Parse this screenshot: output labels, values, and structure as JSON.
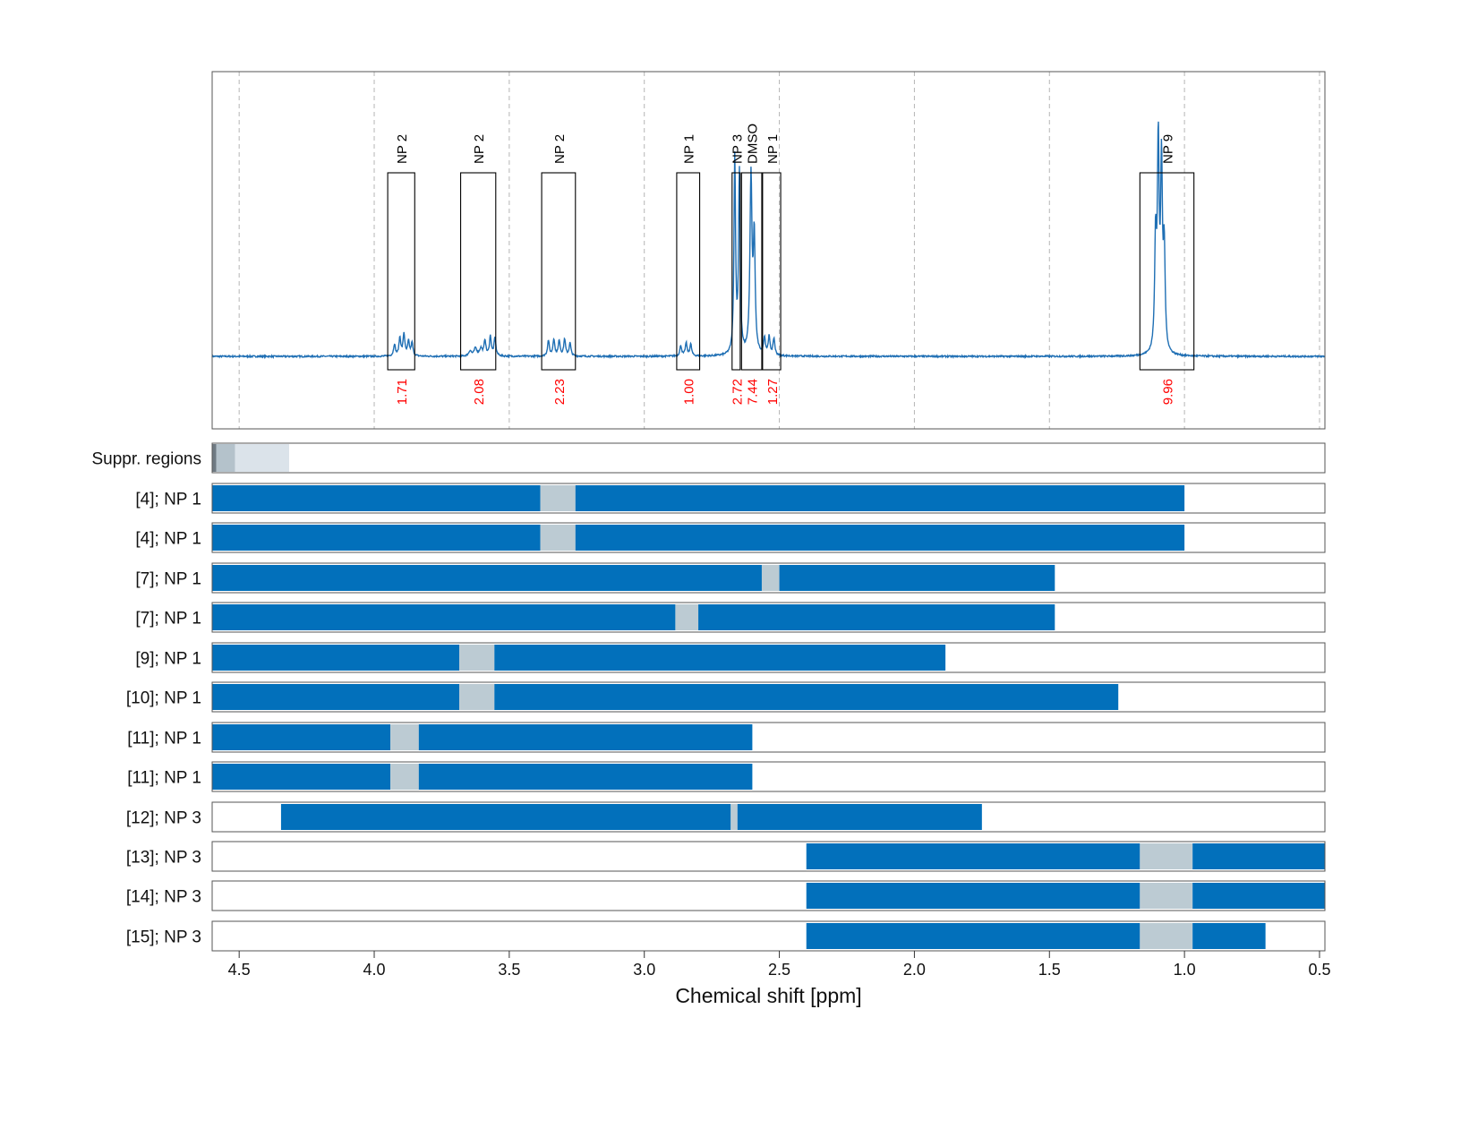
{
  "chart_data": {
    "type": "line",
    "xlabel": "Chemical shift [ppm]",
    "x_axis": {
      "range": [
        4.6,
        0.48
      ],
      "reversed": true,
      "ticks": [
        4.5,
        4.0,
        3.5,
        3.0,
        2.5,
        2.0,
        1.5,
        1.0,
        0.5
      ],
      "tick_labels": [
        "4.5",
        "4.0",
        "3.5",
        "3.0",
        "2.5",
        "2.0",
        "1.5",
        "1.0",
        "0.5"
      ],
      "grid": "dashed vertical at ticks"
    },
    "spectrum": {
      "color": "#1f6fb4",
      "baseline": 0,
      "peaks": [
        {
          "ppm": 3.925,
          "height": 0.045,
          "width": 0.004
        },
        {
          "ppm": 3.905,
          "height": 0.07,
          "width": 0.004
        },
        {
          "ppm": 3.89,
          "height": 0.085,
          "width": 0.004
        },
        {
          "ppm": 3.873,
          "height": 0.055,
          "width": 0.004
        },
        {
          "ppm": 3.86,
          "height": 0.05,
          "width": 0.004
        },
        {
          "ppm": 3.645,
          "height": 0.02,
          "width": 0.006
        },
        {
          "ppm": 3.625,
          "height": 0.03,
          "width": 0.006
        },
        {
          "ppm": 3.605,
          "height": 0.028,
          "width": 0.006
        },
        {
          "ppm": 3.59,
          "height": 0.06,
          "width": 0.004
        },
        {
          "ppm": 3.57,
          "height": 0.075,
          "width": 0.004
        },
        {
          "ppm": 3.553,
          "height": 0.07,
          "width": 0.004
        },
        {
          "ppm": 3.355,
          "height": 0.06,
          "width": 0.004
        },
        {
          "ppm": 3.335,
          "height": 0.065,
          "width": 0.004
        },
        {
          "ppm": 3.315,
          "height": 0.06,
          "width": 0.004
        },
        {
          "ppm": 3.295,
          "height": 0.065,
          "width": 0.004
        },
        {
          "ppm": 3.275,
          "height": 0.05,
          "width": 0.004
        },
        {
          "ppm": 2.865,
          "height": 0.04,
          "width": 0.004
        },
        {
          "ppm": 2.845,
          "height": 0.05,
          "width": 0.004
        },
        {
          "ppm": 2.828,
          "height": 0.045,
          "width": 0.004
        },
        {
          "ppm": 2.665,
          "height": 0.76,
          "width": 0.0035
        },
        {
          "ppm": 2.648,
          "height": 0.7,
          "width": 0.0035
        },
        {
          "ppm": 2.605,
          "height": 0.68,
          "width": 0.0045
        },
        {
          "ppm": 2.593,
          "height": 0.44,
          "width": 0.004
        },
        {
          "ppm": 2.555,
          "height": 0.065,
          "width": 0.004
        },
        {
          "ppm": 2.538,
          "height": 0.07,
          "width": 0.004
        },
        {
          "ppm": 2.52,
          "height": 0.065,
          "width": 0.004
        },
        {
          "ppm": 1.107,
          "height": 0.42,
          "width": 0.004
        },
        {
          "ppm": 1.097,
          "height": 0.78,
          "width": 0.004
        },
        {
          "ppm": 1.085,
          "height": 0.7,
          "width": 0.004
        },
        {
          "ppm": 1.075,
          "height": 0.38,
          "width": 0.004
        }
      ],
      "ylim": [
        -0.28,
        1.1
      ]
    },
    "integration_regions": [
      {
        "label": "NP 2",
        "value": "1.71",
        "from": 3.95,
        "to": 3.85
      },
      {
        "label": "NP 2",
        "value": "2.08",
        "from": 3.68,
        "to": 3.55
      },
      {
        "label": "NP 2",
        "value": "2.23",
        "from": 3.38,
        "to": 3.255
      },
      {
        "label": "NP 1",
        "value": "1.00",
        "from": 2.88,
        "to": 2.795
      },
      {
        "label": "NP 3",
        "value": "2.72",
        "from": 2.675,
        "to": 2.645
      },
      {
        "label": "DMSO",
        "value": "7.44",
        "from": 2.64,
        "to": 2.565
      },
      {
        "label": "NP 1",
        "value": "1.27",
        "from": 2.562,
        "to": 2.495
      },
      {
        "label": "NP 9",
        "value": "9.96",
        "from": 1.165,
        "to": 0.965
      }
    ],
    "suppression_rows": [
      {
        "label": "Suppr. regions",
        "segments": [
          {
            "from": 4.6,
            "to": 4.585,
            "kind": "dark"
          },
          {
            "from": 4.585,
            "to": 4.515,
            "kind": "medium"
          },
          {
            "from": 4.515,
            "to": 4.315,
            "kind": "light"
          }
        ]
      },
      {
        "label": "[4]; NP 1",
        "bar": [
          4.6,
          1.0
        ],
        "gap": [
          3.385,
          3.255
        ]
      },
      {
        "label": "[4]; NP 1",
        "bar": [
          4.6,
          1.0
        ],
        "gap": [
          3.385,
          3.255
        ]
      },
      {
        "label": "[7]; NP 1",
        "bar": [
          4.6,
          1.48
        ],
        "gap": [
          2.565,
          2.5
        ]
      },
      {
        "label": "[7]; NP 1",
        "bar": [
          4.6,
          1.48
        ],
        "gap": [
          2.885,
          2.8
        ]
      },
      {
        "label": "[9]; NP 1",
        "bar": [
          4.6,
          1.885
        ],
        "gap": [
          3.685,
          3.555
        ]
      },
      {
        "label": "[10]; NP 1",
        "bar": [
          4.6,
          1.245
        ],
        "gap": [
          3.685,
          3.555
        ]
      },
      {
        "label": "[11]; NP 1",
        "bar": [
          4.6,
          2.6
        ],
        "gap": [
          3.94,
          3.835
        ]
      },
      {
        "label": "[11]; NP 1",
        "bar": [
          4.6,
          2.6
        ],
        "gap": [
          3.94,
          3.835
        ]
      },
      {
        "label": "[12]; NP 3",
        "bar": [
          4.345,
          1.75
        ],
        "gap": [
          2.68,
          2.655
        ]
      },
      {
        "label": "[13]; NP 3",
        "bar": [
          2.4,
          0.48
        ],
        "gap": [
          1.165,
          0.97
        ]
      },
      {
        "label": "[14]; NP 3",
        "bar": [
          2.4,
          0.48
        ],
        "gap": [
          1.165,
          0.97
        ]
      },
      {
        "label": "[15]; NP 3",
        "bar": [
          2.4,
          0.7
        ],
        "gap": [
          1.165,
          0.97
        ]
      }
    ],
    "colors": {
      "bar": "#0270bb",
      "gap": "#bccbd3",
      "suppr_dark": "#6f7a83",
      "suppr_medium": "#b4c2cb",
      "suppr_light": "#dbe3ea",
      "region_value": "#ff0000",
      "grid": "#b5b5b5",
      "frame": "#555555"
    }
  }
}
